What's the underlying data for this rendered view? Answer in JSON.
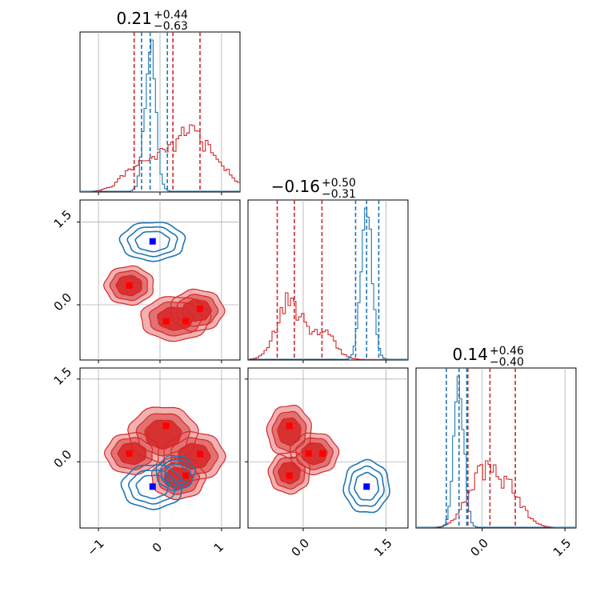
{
  "colors": {
    "red": "#d62728",
    "blue": "#1f77b4",
    "marker_red": "#ff0000",
    "marker_blue": "#0000ff",
    "grid": "#b0b0b0"
  },
  "chart_data": {
    "type": "corner",
    "parameters": 3,
    "grid": true,
    "titles": [
      {
        "median": "0.21",
        "plus": "+0.44",
        "minus": "−0.63"
      },
      {
        "median": "−0.16",
        "plus": "+0.50",
        "minus": "−0.31"
      },
      {
        "median": "0.14",
        "plus": "+0.46",
        "minus": "−0.40"
      }
    ],
    "ranges": [
      [
        -1.3,
        1.3
      ],
      [
        -1.0,
        1.9
      ],
      [
        -1.2,
        1.7
      ]
    ],
    "ticks": [
      {
        "values": [
          -1,
          0,
          1
        ],
        "labels": [
          "−1",
          "0",
          "1"
        ]
      },
      {
        "values": [
          0.0,
          1.5
        ],
        "labels": [
          "0.0",
          "1.5"
        ]
      },
      {
        "values": [
          0.0,
          1.5
        ],
        "labels": [
          "0.0",
          "1.5"
        ]
      }
    ],
    "quantile_lines": {
      "red": [
        [
          -0.42,
          0.21,
          0.65
        ],
        [
          -0.47,
          -0.16,
          0.34
        ],
        [
          -0.26,
          0.14,
          0.6
        ]
      ],
      "blue": [
        [
          -0.3,
          -0.16,
          0.12
        ],
        [
          0.95,
          1.15,
          1.37
        ],
        [
          -0.65,
          -0.42,
          -0.28
        ]
      ]
    },
    "histogram_peaks": {
      "red": [
        [
          [
            -0.3,
            0.4
          ],
          [
            0.3,
            0.5
          ],
          [
            0.6,
            0.45
          ],
          [
            0.9,
            0.25
          ]
        ],
        [
          [
            -0.25,
            0.55
          ],
          [
            0.35,
            0.25
          ]
        ],
        [
          [
            -0.1,
            0.38
          ],
          [
            0.2,
            0.45
          ],
          [
            0.55,
            0.28
          ]
        ]
      ],
      "blue": [
        [
          [
            -0.16,
            1.0
          ]
        ],
        [
          [
            1.15,
            1.0
          ]
        ],
        [
          [
            -0.42,
            1.0
          ]
        ]
      ]
    },
    "markers": {
      "p1_p0": {
        "red": [
          [
            -0.5,
            0.35
          ],
          [
            0.1,
            -0.3
          ],
          [
            0.42,
            -0.3
          ],
          [
            0.65,
            -0.07
          ]
        ],
        "blue": [
          [
            -0.12,
            1.15
          ]
        ]
      },
      "p2_p0": {
        "red": [
          [
            -0.5,
            0.15
          ],
          [
            0.1,
            0.65
          ],
          [
            0.65,
            0.14
          ],
          [
            0.42,
            -0.25
          ]
        ],
        "blue": [
          [
            -0.12,
            -0.45
          ]
        ]
      },
      "p2_p1": {
        "red": [
          [
            -0.25,
            0.65
          ],
          [
            -0.25,
            -0.25
          ],
          [
            0.1,
            0.15
          ],
          [
            0.35,
            0.15
          ]
        ],
        "blue": [
          [
            1.15,
            -0.45
          ]
        ]
      }
    }
  }
}
